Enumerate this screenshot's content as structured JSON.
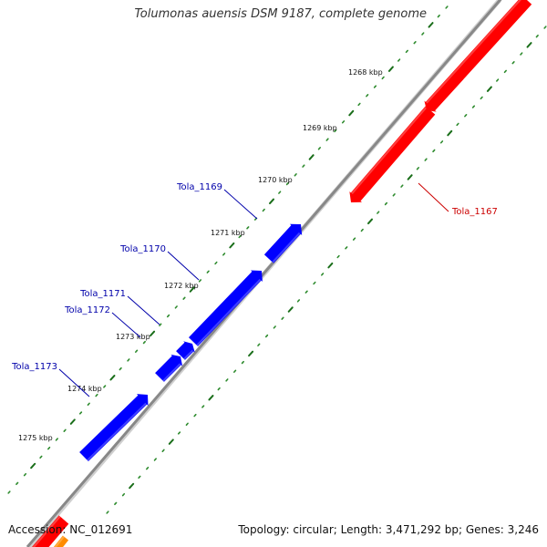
{
  "title": "Tolumonas auensis DSM 9187, complete genome",
  "footer": {
    "accession": "Accession: NC_012691",
    "summary": "Topology: circular; Length: 3,471,292 bp; Genes: 3,246"
  },
  "colors": {
    "forward_gene": "#0000ff",
    "reverse_gene": "#ff0000",
    "forward_label": "#0000aa",
    "reverse_label": "#cc0000",
    "backbone": "#888888",
    "tick_major": "#1a6e1a",
    "tick_minor": "#2e8b2e",
    "rna_gene": "#ff8c00"
  },
  "scale_labels": [
    "1268 kbp",
    "1269 kbp",
    "1270 kbp",
    "1271 kbp",
    "1272 kbp",
    "1273 kbp",
    "1274 kbp",
    "1275 kbp"
  ],
  "genes": [
    {
      "name": "Tola_1167",
      "strand": "reverse"
    },
    {
      "name": "Tola_1169",
      "strand": "forward"
    },
    {
      "name": "Tola_1170",
      "strand": "forward"
    },
    {
      "name": "Tola_1171",
      "strand": "forward"
    },
    {
      "name": "Tola_1172",
      "strand": "forward"
    },
    {
      "name": "Tola_1173",
      "strand": "forward"
    }
  ]
}
